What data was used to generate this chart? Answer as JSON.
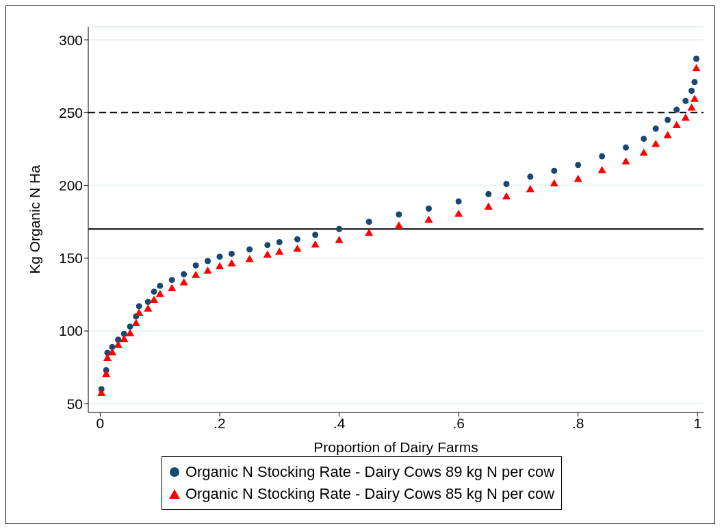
{
  "chart_data": {
    "type": "scatter",
    "xlabel": "Proportion of Dairy Farms",
    "ylabel": "Kg Organic N Ha",
    "xlim": [
      -0.02,
      1.01
    ],
    "xticks": [
      0,
      {
        "value": 0.2,
        "label": ".2"
      },
      {
        "value": 0.4,
        "label": ".4"
      },
      {
        "value": 0.6,
        "label": ".6"
      },
      {
        "value": 0.8,
        "label": ".8"
      },
      1
    ],
    "ylim": [
      44,
      309
    ],
    "yticks": [
      50,
      100,
      150,
      200,
      250,
      300
    ],
    "grid": "y",
    "legend": "bottom",
    "x": [
      0.002,
      0.005,
      0.01,
      0.012,
      0.02,
      0.03,
      0.04,
      0.05,
      0.06,
      0.065,
      0.08,
      0.09,
      0.1,
      0.12,
      0.14,
      0.16,
      0.18,
      0.2,
      0.22,
      0.25,
      0.28,
      0.3,
      0.33,
      0.36,
      0.4,
      0.45,
      0.5,
      0.55,
      0.6,
      0.65,
      0.68,
      0.72,
      0.76,
      0.8,
      0.84,
      0.88,
      0.91,
      0.93,
      0.95,
      0.965,
      0.98,
      0.99,
      0.995,
      0.998
    ],
    "series": [
      {
        "name": "Organic N Stocking Rate - Dairy Cows 89 kg N per cow",
        "color": "#1a476f",
        "marker": "circle",
        "values": [
          60,
          null,
          73,
          85,
          89,
          94,
          98,
          103,
          110,
          117,
          120,
          127,
          131,
          135,
          139,
          145,
          148,
          151,
          153,
          156,
          159,
          161,
          163,
          166,
          170,
          175,
          180,
          184,
          189,
          194,
          201,
          206,
          210,
          214,
          220,
          226,
          232,
          239,
          245,
          252,
          258,
          265,
          271,
          287
        ]
      },
      {
        "name": "Organic N Stocking Rate - Dairy Cows 85 kg N per cow",
        "color": "#ff0000",
        "marker": "triangle",
        "values": [
          57,
          null,
          70,
          81,
          85,
          90,
          94,
          98,
          105,
          112,
          115,
          121,
          125,
          129,
          133,
          138,
          141,
          144,
          146,
          149,
          152,
          154,
          156,
          159,
          162,
          167,
          172,
          176,
          180,
          185,
          192,
          197,
          201,
          204,
          210,
          216,
          222,
          228,
          234,
          241,
          246,
          253,
          259,
          280
        ]
      }
    ],
    "ref_lines": [
      {
        "axis": "y",
        "value": 170,
        "color": "#000000",
        "line_style": "solid"
      },
      {
        "axis": "y",
        "value": 250,
        "color": "#000000",
        "line_style": "dashed"
      }
    ]
  }
}
